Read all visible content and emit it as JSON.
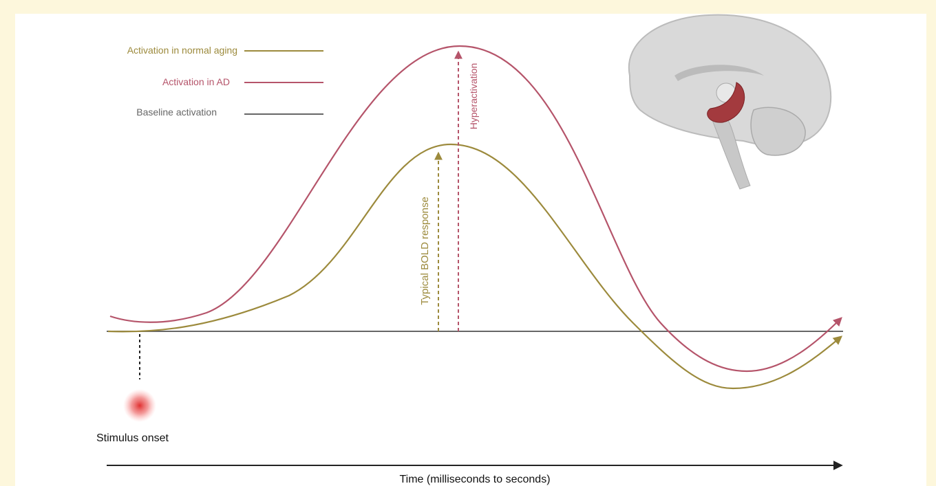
{
  "legend": [
    {
      "label": "Activation in normal aging",
      "color": "#9c8a3c"
    },
    {
      "label": "Activation in AD",
      "color": "#b5546a"
    },
    {
      "label": "Baseline activation",
      "color": "#666666"
    }
  ],
  "annotations": {
    "hyperactivation": "Hyperactivation",
    "typical": "Typical BOLD response",
    "stimulus": "Stimulus onset"
  },
  "x_axis_label": "Time (milliseconds to seconds)"
}
